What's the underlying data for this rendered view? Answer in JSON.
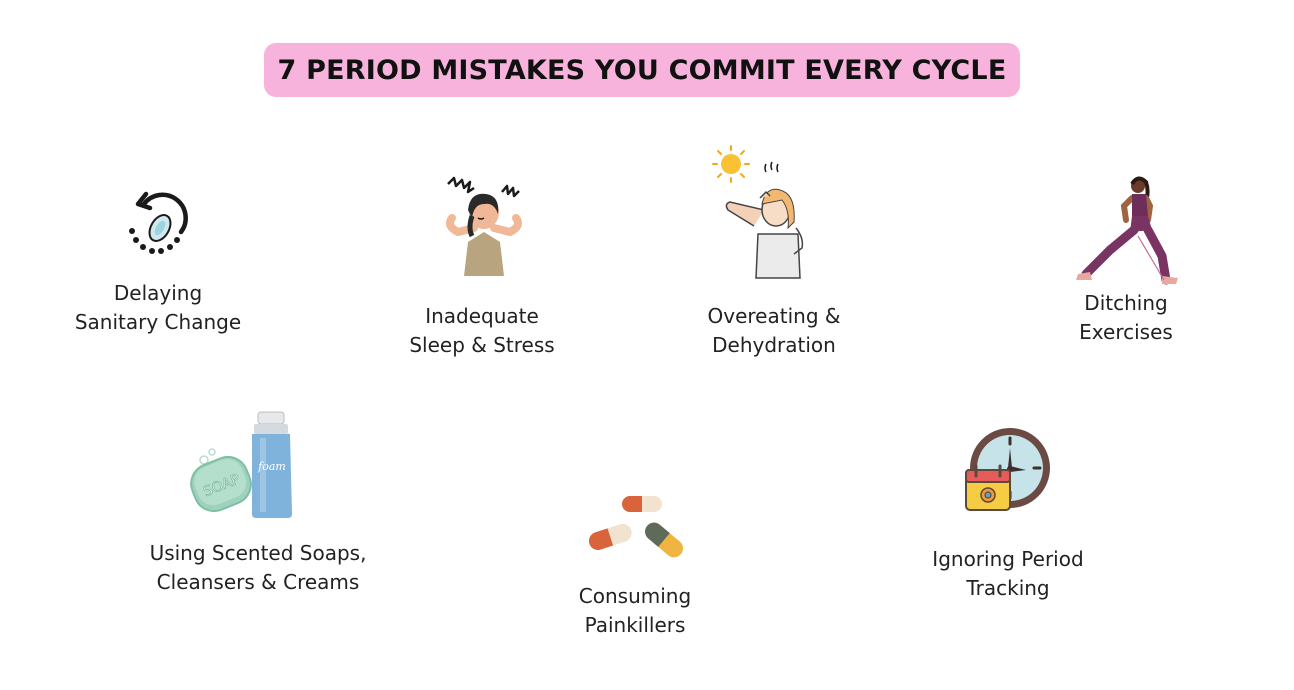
{
  "title": "7 PERIOD MISTAKES YOU COMMIT EVERY CYCLE",
  "colors": {
    "title_background": "#f7b3dc",
    "text": "#222222",
    "background": "#ffffff"
  },
  "items": [
    {
      "icon": "sanitary-pad-refresh-icon",
      "line1": "Delaying",
      "line2": "Sanitary Change"
    },
    {
      "icon": "stressed-woman-icon",
      "line1": "Inadequate",
      "line2": "Sleep & Stress"
    },
    {
      "icon": "hot-sweating-woman-icon",
      "line1": "Overeating &",
      "line2": "Dehydration"
    },
    {
      "icon": "exercising-woman-icon",
      "line1": "Ditching",
      "line2": "Exercises"
    },
    {
      "icon": "soap-and-foam-bottle-icon",
      "line1": "Using Scented Soaps,",
      "line2": "Cleansers & Creams"
    },
    {
      "icon": "pills-capsules-icon",
      "line1": "Consuming",
      "line2": "Painkillers"
    },
    {
      "icon": "clock-calendar-icon",
      "line1": "Ignoring Period",
      "line2": "Tracking"
    }
  ]
}
